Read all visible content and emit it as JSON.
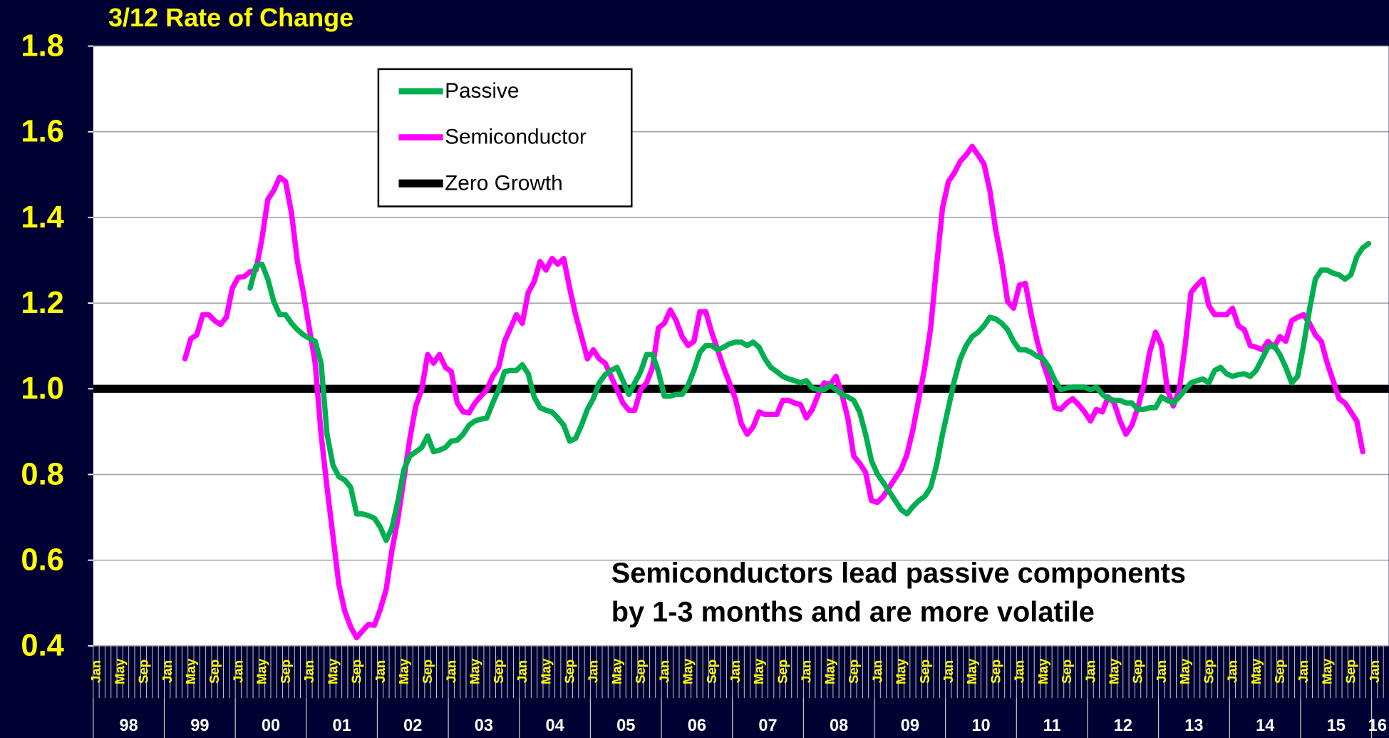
{
  "chart_data": {
    "type": "line",
    "title": "3/12 Rate of Change",
    "annotation": [
      "Semiconductors lead passive components",
      "by 1-3 months and are more volatile"
    ],
    "categories": [
      "Jan",
      null,
      null,
      null,
      "May",
      null,
      null,
      null,
      "Sep",
      null,
      null,
      null,
      "Jan",
      null,
      null,
      null,
      "May",
      null,
      null,
      null,
      "Sep",
      null,
      null,
      null,
      "Jan",
      null,
      null,
      null,
      "May",
      null,
      null,
      null,
      "Sep",
      null,
      null,
      null,
      "Jan",
      null,
      null,
      null,
      "May",
      null,
      null,
      null,
      "Sep",
      null,
      null,
      null,
      "Jan",
      null,
      null,
      null,
      "May",
      null,
      null,
      null,
      "Sep",
      null,
      null,
      null,
      "Jan",
      null,
      null,
      null,
      "May",
      null,
      null,
      null,
      "Sep",
      null,
      null,
      null,
      "Jan",
      null,
      null,
      null,
      "May",
      null,
      null,
      null,
      "Sep",
      null,
      null,
      null,
      "Jan",
      null,
      null,
      null,
      "May",
      null,
      null,
      null,
      "Sep",
      null,
      null,
      null,
      "Jan",
      null,
      null,
      null,
      "May",
      null,
      null,
      null,
      "Sep",
      null,
      null,
      null,
      "Jan",
      null,
      null,
      null,
      "May",
      null,
      null,
      null,
      "Sep",
      null,
      null,
      null,
      "Jan",
      null,
      null,
      null,
      "May",
      null,
      null,
      null,
      "Sep",
      null,
      null,
      null,
      "Jan",
      null,
      null,
      null,
      "May",
      null,
      null,
      null,
      "Sep",
      null,
      null,
      null,
      "Jan",
      null,
      null,
      null,
      "May",
      null,
      null,
      null,
      "Sep",
      null,
      null,
      null,
      "Jan",
      null,
      null,
      null,
      "May",
      null,
      null,
      null,
      "Sep",
      null,
      null,
      null,
      "Jan",
      null,
      null,
      null,
      "May",
      null,
      null,
      null,
      "Sep",
      null,
      null,
      null,
      "Jan",
      null,
      null,
      null,
      "May",
      null,
      null,
      null,
      "Sep",
      null,
      null,
      null,
      "Jan",
      null,
      null,
      null,
      "May",
      null,
      null,
      null,
      "Sep",
      null,
      null,
      null,
      "Jan",
      null,
      null,
      null,
      "May",
      null,
      null,
      null,
      "Sep",
      null,
      null,
      null,
      "Jan",
      null
    ],
    "year_labels": [
      "98",
      "99",
      "00",
      "01",
      "02",
      "03",
      "04",
      "05",
      "06",
      "07",
      "08",
      "09",
      "10",
      "11",
      "12",
      "13",
      "14",
      "15",
      "16"
    ],
    "series": [
      {
        "name": "Passive",
        "color": "#00b050",
        "values": [
          null,
          null,
          null,
          null,
          null,
          null,
          null,
          null,
          null,
          null,
          null,
          null,
          null,
          null,
          null,
          null,
          null,
          null,
          null,
          null,
          null,
          null,
          null,
          null,
          null,
          null,
          1.235,
          1.287,
          1.291,
          1.256,
          1.204,
          1.173,
          1.173,
          1.153,
          1.138,
          1.126,
          1.118,
          1.111,
          1.06,
          0.894,
          0.822,
          0.795,
          0.787,
          0.77,
          0.708,
          0.708,
          0.704,
          0.698,
          0.677,
          0.646,
          0.677,
          0.739,
          0.812,
          0.843,
          0.853,
          0.863,
          0.89,
          0.853,
          0.857,
          0.863,
          0.878,
          0.88,
          0.894,
          0.915,
          0.925,
          0.929,
          0.932,
          0.967,
          0.998,
          1.04,
          1.043,
          1.043,
          1.056,
          1.035,
          0.981,
          0.956,
          0.95,
          0.946,
          0.932,
          0.915,
          0.878,
          0.884,
          0.915,
          0.952,
          0.977,
          1.014,
          1.033,
          1.043,
          1.05,
          1.019,
          0.987,
          1.014,
          1.04,
          1.08,
          1.08,
          1.04,
          0.983,
          0.983,
          0.987,
          0.987,
          1.008,
          1.043,
          1.085,
          1.101,
          1.101,
          1.091,
          1.097,
          1.105,
          1.109,
          1.109,
          1.101,
          1.109,
          1.097,
          1.07,
          1.05,
          1.04,
          1.029,
          1.023,
          1.019,
          1.014,
          1.019,
          1.002,
          0.998,
          0.998,
          1.008,
          0.998,
          0.987,
          0.981,
          0.973,
          0.946,
          0.894,
          0.832,
          0.801,
          0.781,
          0.76,
          0.739,
          0.718,
          0.708,
          0.725,
          0.739,
          0.749,
          0.77,
          0.822,
          0.894,
          0.956,
          1.019,
          1.07,
          1.101,
          1.122,
          1.132,
          1.147,
          1.167,
          1.163,
          1.153,
          1.138,
          1.111,
          1.091,
          1.091,
          1.085,
          1.076,
          1.07,
          1.05,
          1.019,
          0.998,
          1.002,
          1.004,
          1.004,
          1.004,
          0.998,
          1.004,
          0.987,
          0.977,
          0.973,
          0.973,
          0.967,
          0.967,
          0.952,
          0.952,
          0.956,
          0.956,
          0.981,
          0.973,
          0.967,
          0.981,
          0.998,
          1.014,
          1.019,
          1.023,
          1.014,
          1.043,
          1.05,
          1.035,
          1.029,
          1.033,
          1.035,
          1.029,
          1.043,
          1.07,
          1.097,
          1.101,
          1.08,
          1.05,
          1.014,
          1.029,
          1.101,
          1.184,
          1.256,
          1.277,
          1.277,
          1.27,
          1.266,
          1.256,
          1.266,
          1.308,
          1.329,
          1.339,
          null,
          null
        ]
      },
      {
        "name": "Semiconductor",
        "color": "#ff00ff",
        "values": [
          null,
          null,
          null,
          null,
          null,
          null,
          null,
          null,
          null,
          null,
          null,
          null,
          null,
          null,
          null,
          1.07,
          1.117,
          1.126,
          1.173,
          1.173,
          1.159,
          1.15,
          1.167,
          1.235,
          1.26,
          1.262,
          1.273,
          1.277,
          1.35,
          1.442,
          1.463,
          1.494,
          1.484,
          1.41,
          1.297,
          1.225,
          1.142,
          1.06,
          0.894,
          0.77,
          0.657,
          0.543,
          0.481,
          0.444,
          0.419,
          0.435,
          0.45,
          0.448,
          0.485,
          0.532,
          0.625,
          0.698,
          0.791,
          0.884,
          0.96,
          0.998,
          1.08,
          1.06,
          1.08,
          1.05,
          1.04,
          0.967,
          0.946,
          0.944,
          0.967,
          0.983,
          0.998,
          1.029,
          1.05,
          1.111,
          1.142,
          1.173,
          1.153,
          1.225,
          1.25,
          1.297,
          1.277,
          1.304,
          1.291,
          1.304,
          1.235,
          1.173,
          1.122,
          1.07,
          1.091,
          1.07,
          1.06,
          1.029,
          0.998,
          0.967,
          0.95,
          0.95,
          0.998,
          1.014,
          1.05,
          1.142,
          1.153,
          1.184,
          1.159,
          1.122,
          1.101,
          1.111,
          1.18,
          1.18,
          1.132,
          1.091,
          1.05,
          1.014,
          0.977,
          0.919,
          0.894,
          0.911,
          0.946,
          0.94,
          0.94,
          0.94,
          0.973,
          0.973,
          0.967,
          0.963,
          0.932,
          0.952,
          0.987,
          1.014,
          1.01,
          1.029,
          0.987,
          0.932,
          0.843,
          0.826,
          0.805,
          0.739,
          0.735,
          0.749,
          0.77,
          0.791,
          0.812,
          0.847,
          0.905,
          0.977,
          1.05,
          1.142,
          1.287,
          1.422,
          1.484,
          1.504,
          1.531,
          1.546,
          1.566,
          1.546,
          1.525,
          1.463,
          1.37,
          1.297,
          1.204,
          1.188,
          1.242,
          1.246,
          1.173,
          1.111,
          1.06,
          1.019,
          0.956,
          0.952,
          0.967,
          0.977,
          0.963,
          0.946,
          0.925,
          0.952,
          0.946,
          0.981,
          0.967,
          0.925,
          0.894,
          0.915,
          0.956,
          1.008,
          1.085,
          1.132,
          1.101,
          0.998,
          0.96,
          0.998,
          1.101,
          1.225,
          1.242,
          1.256,
          1.194,
          1.173,
          1.173,
          1.173,
          1.188,
          1.147,
          1.138,
          1.101,
          1.097,
          1.091,
          1.111,
          1.097,
          1.122,
          1.111,
          1.159,
          1.167,
          1.173,
          1.153,
          1.126,
          1.111,
          1.06,
          1.019,
          0.977,
          0.967,
          0.946,
          0.925,
          0.853,
          null,
          null,
          null
        ]
      }
    ],
    "reference_line": {
      "name": "Zero Growth",
      "color": "#000000",
      "value": 1
    },
    "ylim": [
      0.4,
      1.8
    ],
    "yticks": [
      0.4,
      0.6,
      0.8,
      {
        "value": 1,
        "label": "1.0"
      },
      1.2,
      1.4,
      1.6,
      1.8
    ],
    "grid": true
  }
}
